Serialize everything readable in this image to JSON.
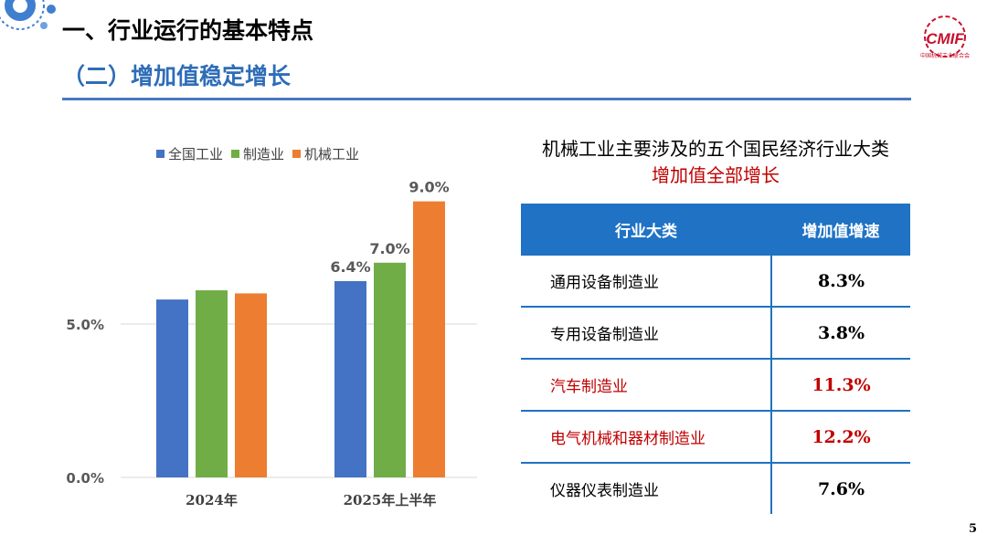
{
  "header": {
    "title": "一、行业运行的基本特点",
    "subtitle": "（二）增加值稳定增长"
  },
  "logo": {
    "text": "CMIF",
    "caption": "中国机械工业联合会"
  },
  "colors": {
    "accent_blue": "#2e6db8",
    "table_blue": "#1f72c4",
    "highlight_red": "#c00000"
  },
  "chart_data": {
    "type": "bar",
    "categories": [
      "2024年",
      "2025年上半年"
    ],
    "series": [
      {
        "name": "全国工业",
        "color": "#4472c4",
        "values": [
          5.8,
          6.4
        ],
        "labels": [
          "",
          "6.4%"
        ]
      },
      {
        "name": "制造业",
        "color": "#70ad47",
        "values": [
          6.1,
          7.0
        ],
        "labels": [
          "",
          "7.0%"
        ]
      },
      {
        "name": "机械工业",
        "color": "#ed7d31",
        "values": [
          6.0,
          9.0
        ],
        "labels": [
          "",
          "9.0%"
        ]
      }
    ],
    "yticks": [
      "0.0%",
      "5.0%"
    ],
    "ytick_values": [
      0,
      5
    ],
    "ylim": [
      0,
      10
    ],
    "legend_position": "top",
    "grid": true
  },
  "table": {
    "title": "机械工业主要涉及的五个国民经济行业大类",
    "subtitle": "增加值全部增长",
    "headers": [
      "行业大类",
      "增加值增速"
    ],
    "rows": [
      {
        "name": "通用设备制造业",
        "value": "8.3%"
      },
      {
        "name": "专用设备制造业",
        "value": "3.8%"
      },
      {
        "name": "汽车制造业",
        "value": "11.3%"
      },
      {
        "name": "电气机械和器材制造业",
        "value": "12.2%"
      },
      {
        "name": "仪器仪表制造业",
        "value": "7.6%"
      }
    ]
  },
  "page_number": "5"
}
